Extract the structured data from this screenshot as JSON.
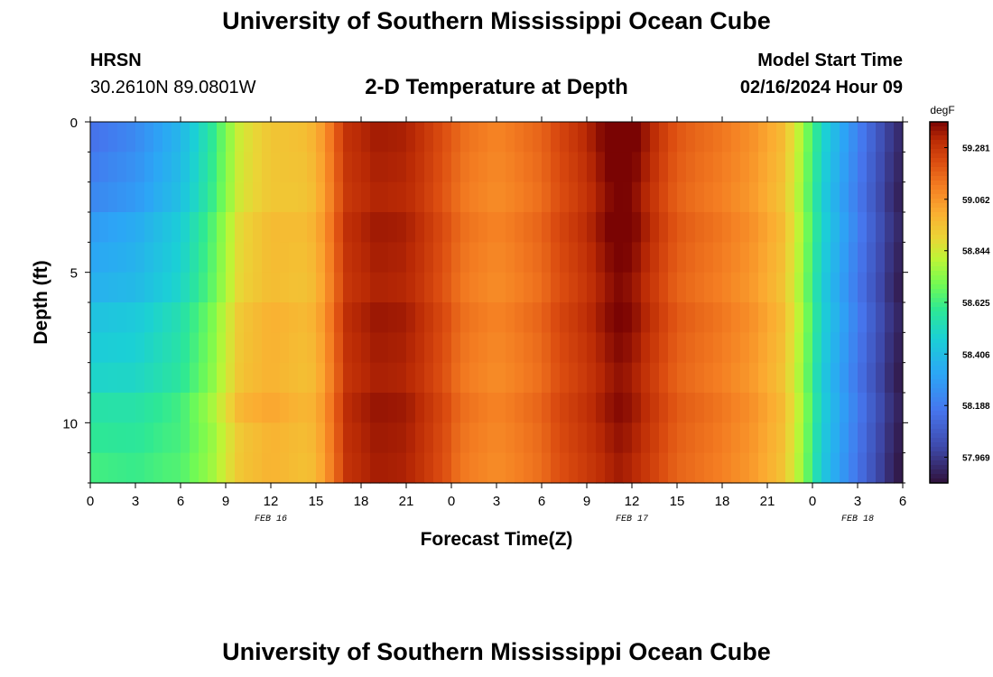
{
  "header": {
    "title": "University of Southern Mississippi Ocean Cube",
    "station": "HRSN",
    "coords": "30.2610N  89.0801W",
    "subtitle": "2-D Temperature at Depth",
    "model_label": "Model Start Time",
    "model_time": "02/16/2024 Hour 09",
    "footer_title": "University of Southern Mississippi Ocean Cube"
  },
  "chart_data": {
    "type": "heatmap",
    "title": "2-D Temperature at Depth",
    "xlabel": "Forecast Time(Z)",
    "ylabel": "Depth (ft)",
    "x_tick_labels": [
      "0",
      "3",
      "6",
      "9",
      "12",
      "15",
      "18",
      "21",
      "0",
      "3",
      "6",
      "9",
      "12",
      "15",
      "18",
      "21",
      "0",
      "3",
      "6"
    ],
    "x_range_hours": [
      0,
      54
    ],
    "date_labels": [
      {
        "label": "FEB 16",
        "at_hour": 12
      },
      {
        "label": "FEB 17",
        "at_hour": 36
      },
      {
        "label": "FEB 18",
        "at_hour": 51
      }
    ],
    "y_tick_labels": [
      "0",
      "5",
      "10"
    ],
    "y_range_ft": [
      0,
      12
    ],
    "colorbar": {
      "unit": "degF",
      "labels": [
        "59.281",
        "59.062",
        "58.844",
        "58.625",
        "58.406",
        "58.188",
        "57.969"
      ],
      "range": [
        57.86,
        59.39
      ]
    },
    "time_profile": [
      {
        "h": 0,
        "v": 58.39
      },
      {
        "h": 3,
        "v": 58.42
      },
      {
        "h": 6,
        "v": 58.52
      },
      {
        "h": 8,
        "v": 58.68
      },
      {
        "h": 10,
        "v": 58.92
      },
      {
        "h": 12,
        "v": 58.98
      },
      {
        "h": 14,
        "v": 58.96
      },
      {
        "h": 15,
        "v": 58.98
      },
      {
        "h": 16,
        "v": 59.12
      },
      {
        "h": 17,
        "v": 59.28
      },
      {
        "h": 19,
        "v": 59.33
      },
      {
        "h": 21,
        "v": 59.32
      },
      {
        "h": 22,
        "v": 59.28
      },
      {
        "h": 24,
        "v": 59.18
      },
      {
        "h": 25,
        "v": 59.13
      },
      {
        "h": 27,
        "v": 59.09
      },
      {
        "h": 28,
        "v": 59.11
      },
      {
        "h": 30,
        "v": 59.16
      },
      {
        "h": 31,
        "v": 59.22
      },
      {
        "h": 33,
        "v": 59.28
      },
      {
        "h": 35,
        "v": 59.35
      },
      {
        "h": 36,
        "v": 59.33
      },
      {
        "h": 37,
        "v": 59.28
      },
      {
        "h": 39,
        "v": 59.18
      },
      {
        "h": 42,
        "v": 59.12
      },
      {
        "h": 44,
        "v": 59.06
      },
      {
        "h": 46,
        "v": 58.96
      },
      {
        "h": 47,
        "v": 58.82
      },
      {
        "h": 48,
        "v": 58.62
      },
      {
        "h": 49,
        "v": 58.44
      },
      {
        "h": 51,
        "v": 58.2
      },
      {
        "h": 53,
        "v": 57.98
      },
      {
        "h": 54,
        "v": 57.9
      }
    ]
  }
}
